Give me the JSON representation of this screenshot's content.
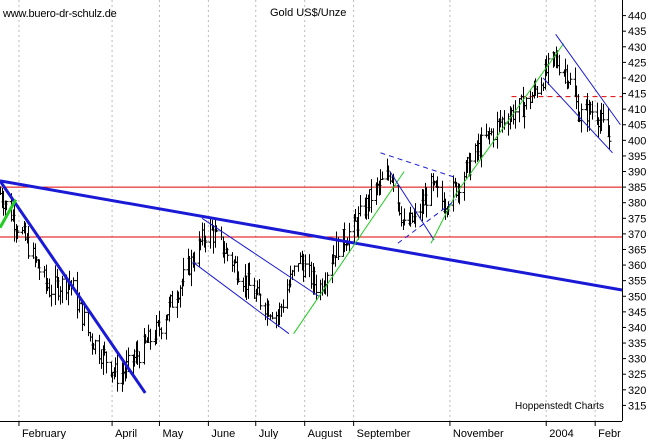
{
  "header": {
    "site": "www.buero-dr-schulz.de",
    "title": "Gold US$/Unze",
    "source": "Hoppenstedt Charts"
  },
  "chart_data": {
    "type": "ohlc",
    "title": "Gold US$/Unze",
    "y_axis": {
      "min": 310,
      "max": 445,
      "ticks": [
        315,
        320,
        325,
        330,
        335,
        340,
        345,
        350,
        355,
        360,
        365,
        370,
        375,
        380,
        385,
        390,
        395,
        400,
        405,
        410,
        415,
        420,
        425,
        430,
        435,
        440
      ],
      "position": "right"
    },
    "x_axis": {
      "labels": [
        {
          "label": "February",
          "date": "2003-02-01"
        },
        {
          "label": "April",
          "date": "2003-04-01"
        },
        {
          "label": "May",
          "date": "2003-05-01"
        },
        {
          "label": "June",
          "date": "2003-06-01"
        },
        {
          "label": "July",
          "date": "2003-07-01"
        },
        {
          "label": "August",
          "date": "2003-08-01"
        },
        {
          "label": "September",
          "date": "2003-09-01"
        },
        {
          "label": "November",
          "date": "2003-11-01"
        },
        {
          "label": "2004",
          "date": "2004-01-01"
        },
        {
          "label": "Febr",
          "date": "2004-02-01"
        }
      ],
      "range": [
        "2003-01-20",
        "2004-02-18"
      ]
    },
    "grid": "vertical-dotted",
    "anchors": [
      {
        "date": "2003-01-20",
        "close": 383
      },
      {
        "date": "2003-02-05",
        "close": 368
      },
      {
        "date": "2003-02-20",
        "close": 352
      },
      {
        "date": "2003-03-05",
        "close": 355
      },
      {
        "date": "2003-03-18",
        "close": 337
      },
      {
        "date": "2003-04-05",
        "close": 324
      },
      {
        "date": "2003-04-15",
        "close": 330
      },
      {
        "date": "2003-05-01",
        "close": 340
      },
      {
        "date": "2003-05-20",
        "close": 360
      },
      {
        "date": "2003-06-01",
        "close": 372
      },
      {
        "date": "2003-06-15",
        "close": 362
      },
      {
        "date": "2003-07-01",
        "close": 350
      },
      {
        "date": "2003-07-15",
        "close": 344
      },
      {
        "date": "2003-07-28",
        "close": 362
      },
      {
        "date": "2003-08-10",
        "close": 352
      },
      {
        "date": "2003-08-20",
        "close": 365
      },
      {
        "date": "2003-09-01",
        "close": 372
      },
      {
        "date": "2003-09-12",
        "close": 382
      },
      {
        "date": "2003-09-25",
        "close": 390
      },
      {
        "date": "2003-10-03",
        "close": 372
      },
      {
        "date": "2003-10-10",
        "close": 375
      },
      {
        "date": "2003-10-20",
        "close": 385
      },
      {
        "date": "2003-10-28",
        "close": 380
      },
      {
        "date": "2003-11-05",
        "close": 385
      },
      {
        "date": "2003-11-20",
        "close": 398
      },
      {
        "date": "2003-12-05",
        "close": 407
      },
      {
        "date": "2003-12-20",
        "close": 412
      },
      {
        "date": "2004-01-06",
        "close": 426
      },
      {
        "date": "2004-01-14",
        "close": 422
      },
      {
        "date": "2004-01-22",
        "close": 408
      },
      {
        "date": "2004-02-01",
        "close": 410
      },
      {
        "date": "2004-02-10",
        "close": 400
      }
    ],
    "horizontal_lines": [
      {
        "name": "resistance",
        "y": 385,
        "color": "#e00000",
        "style": "solid"
      },
      {
        "name": "support",
        "y": 369,
        "color": "#e00000",
        "style": "solid"
      },
      {
        "name": "dashed-level",
        "y": 414,
        "color": "#e00000",
        "style": "dashed"
      }
    ],
    "trendlines": [
      {
        "name": "long-downtrend",
        "color": "#1a1ad6",
        "width": 3,
        "from": [
          "2003-01-20",
          387
        ],
        "to": [
          "2004-02-18",
          352
        ]
      },
      {
        "name": "steep-downtrend",
        "color": "#1a1ad6",
        "width": 3,
        "from": [
          "2003-01-20",
          387
        ],
        "to": [
          "2003-04-22",
          319
        ]
      },
      {
        "name": "green-short",
        "color": "#22cc22",
        "width": 3,
        "from": [
          "2003-01-20",
          372
        ],
        "to": [
          "2003-01-30",
          381
        ]
      }
    ],
    "channels": [
      {
        "name": "summer-down-upper",
        "color": "#1a1ad6",
        "from": [
          "2003-05-28",
          375
        ],
        "to": [
          "2003-08-10",
          350
        ]
      },
      {
        "name": "summer-down-lower",
        "color": "#1a1ad6",
        "from": [
          "2003-05-22",
          361
        ],
        "to": [
          "2003-07-22",
          338
        ]
      },
      {
        "name": "autumn-up",
        "color": "#22cc22",
        "from": [
          "2003-07-25",
          338
        ],
        "to": [
          "2003-10-03",
          390
        ]
      },
      {
        "name": "oct-down",
        "color": "#1a1ad6",
        "from": [
          "2003-09-24",
          390
        ],
        "to": [
          "2003-10-22",
          368
        ]
      },
      {
        "name": "oct-up",
        "color": "#22cc22",
        "from": [
          "2003-10-20",
          367
        ],
        "to": [
          "2003-11-05",
          383
        ]
      },
      {
        "name": "winter-up",
        "color": "#22cc22",
        "from": [
          "2003-11-05",
          383
        ],
        "to": [
          "2004-01-12",
          431
        ]
      },
      {
        "name": "jan-down-upper",
        "color": "#1a1ad6",
        "from": [
          "2004-01-07",
          434
        ],
        "to": [
          "2004-02-17",
          405
        ]
      },
      {
        "name": "jan-down-lower",
        "color": "#1a1ad6",
        "from": [
          "2003-12-30",
          420
        ],
        "to": [
          "2004-02-12",
          396
        ]
      }
    ],
    "dashed_lines": [
      {
        "name": "triangle-upper",
        "color": "#1a1ad6",
        "from": [
          "2003-09-18",
          396
        ],
        "to": [
          "2003-11-05",
          388
        ]
      },
      {
        "name": "triangle-lower",
        "color": "#1a1ad6",
        "from": [
          "2003-09-29",
          367
        ],
        "to": [
          "2003-11-05",
          381
        ]
      }
    ]
  }
}
